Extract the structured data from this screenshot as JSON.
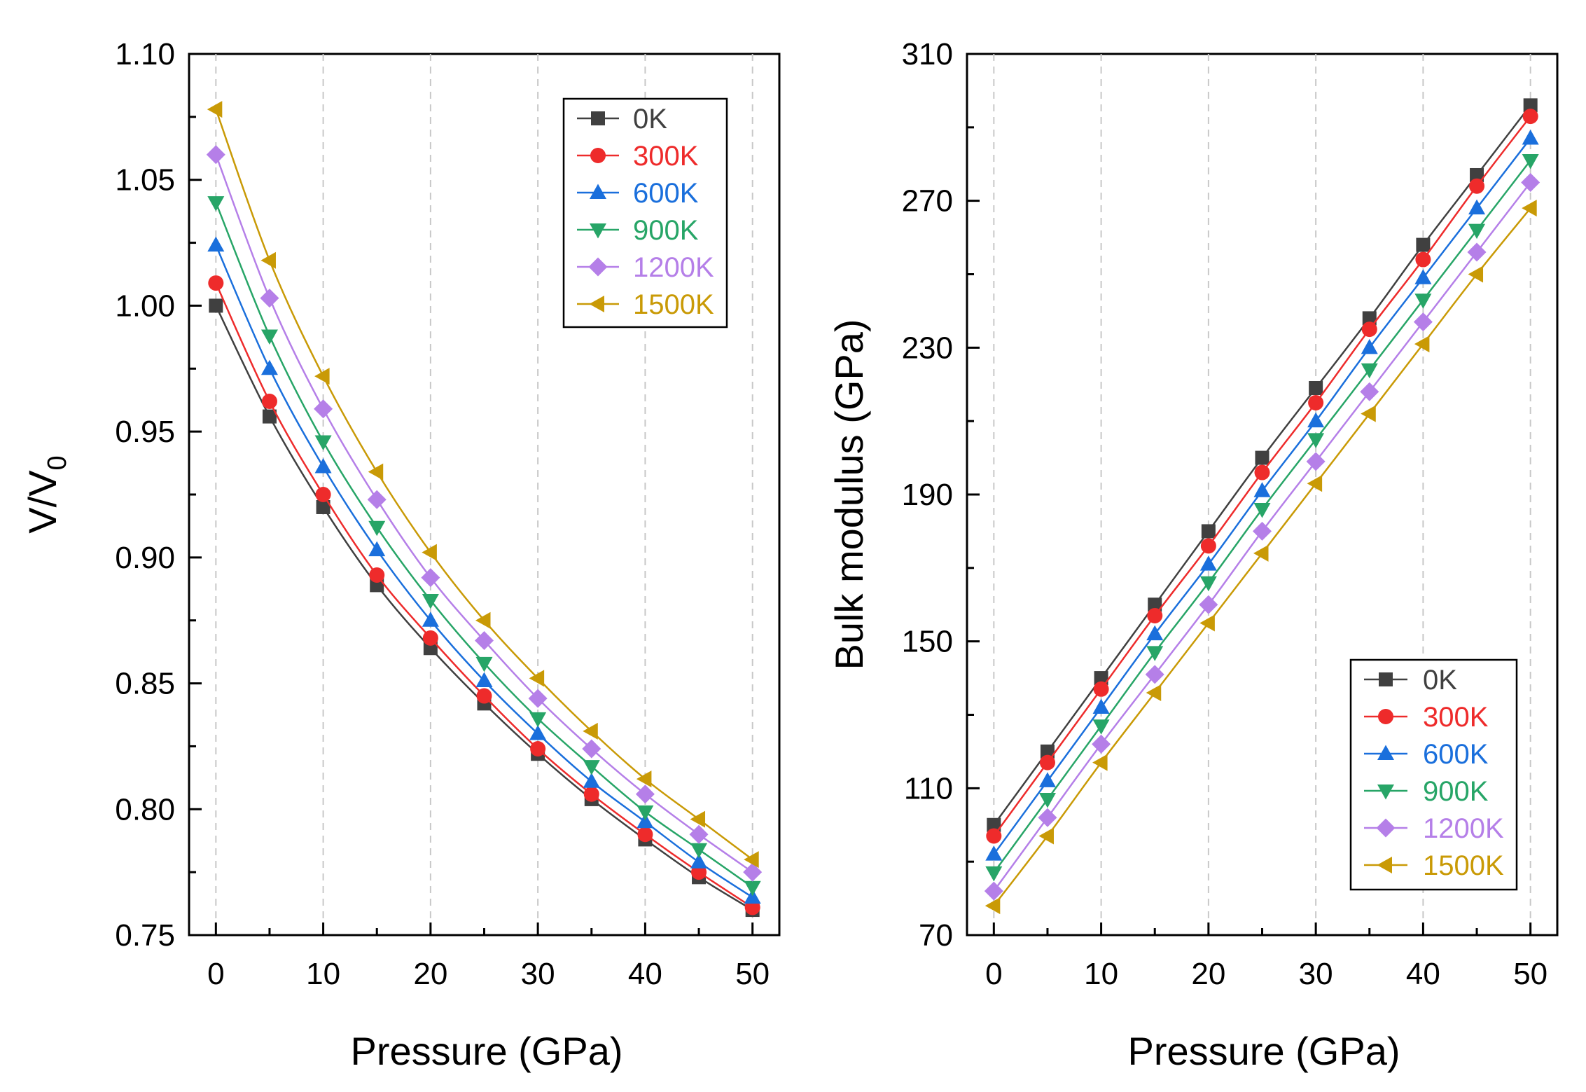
{
  "chart_data": [
    {
      "type": "line",
      "xlabel": "Pressure (GPa)",
      "ylabel_main": "V/V",
      "ylabel_sub": "0",
      "x": [
        0,
        5,
        10,
        15,
        20,
        25,
        30,
        35,
        40,
        45,
        50
      ],
      "xlim": [
        -2.5,
        52.5
      ],
      "ylim": [
        0.75,
        1.1
      ],
      "xticks": [
        0,
        10,
        20,
        30,
        40,
        50
      ],
      "xtick_labels": [
        "0",
        "10",
        "20",
        "30",
        "40",
        "50"
      ],
      "yticks": [
        0.75,
        0.8,
        0.85,
        0.9,
        0.95,
        1.0,
        1.05,
        1.1
      ],
      "ytick_labels": [
        "0.75",
        "0.80",
        "0.85",
        "0.90",
        "0.95",
        "1.00",
        "1.05",
        "1.10"
      ],
      "grid": "vertical dashed",
      "legend_position": "top-right",
      "series": [
        {
          "name": "0K",
          "color": "#404040",
          "marker": "square",
          "values": [
            1.0,
            0.956,
            0.92,
            0.889,
            0.864,
            0.842,
            0.822,
            0.804,
            0.788,
            0.773,
            0.76
          ]
        },
        {
          "name": "300K",
          "color": "#ee2b2b",
          "marker": "circle",
          "values": [
            1.009,
            0.962,
            0.925,
            0.893,
            0.868,
            0.845,
            0.824,
            0.806,
            0.79,
            0.775,
            0.761
          ]
        },
        {
          "name": "600K",
          "color": "#1a6fdc",
          "marker": "triangle-up",
          "values": [
            1.024,
            0.975,
            0.936,
            0.903,
            0.875,
            0.851,
            0.83,
            0.811,
            0.795,
            0.779,
            0.765
          ]
        },
        {
          "name": "900K",
          "color": "#27a567",
          "marker": "triangle-down",
          "values": [
            1.041,
            0.988,
            0.946,
            0.912,
            0.883,
            0.858,
            0.836,
            0.817,
            0.799,
            0.784,
            0.769
          ]
        },
        {
          "name": "1200K",
          "color": "#b57fe8",
          "marker": "diamond",
          "values": [
            1.06,
            1.003,
            0.959,
            0.923,
            0.892,
            0.867,
            0.844,
            0.824,
            0.806,
            0.79,
            0.775
          ]
        },
        {
          "name": "1500K",
          "color": "#c99a06",
          "marker": "triangle-left",
          "values": [
            1.078,
            1.018,
            0.972,
            0.934,
            0.902,
            0.875,
            0.852,
            0.831,
            0.812,
            0.796,
            0.78
          ]
        }
      ]
    },
    {
      "type": "line",
      "xlabel": "Pressure (GPa)",
      "ylabel": "Bulk modulus (GPa)",
      "x": [
        0,
        5,
        10,
        15,
        20,
        25,
        30,
        35,
        40,
        45,
        50
      ],
      "xlim": [
        -2.5,
        52.5
      ],
      "ylim": [
        70,
        310
      ],
      "xticks": [
        0,
        10,
        20,
        30,
        40,
        50
      ],
      "xtick_labels": [
        "0",
        "10",
        "20",
        "30",
        "40",
        "50"
      ],
      "yticks": [
        70,
        110,
        150,
        190,
        230,
        270,
        310
      ],
      "ytick_labels": [
        "70",
        "110",
        "150",
        "190",
        "230",
        "270",
        "310"
      ],
      "grid": "vertical dashed",
      "legend_position": "bottom-right",
      "series": [
        {
          "name": "0K",
          "color": "#404040",
          "marker": "square",
          "values": [
            100,
            120,
            140,
            160,
            180,
            200,
            219,
            238,
            258,
            277,
            296
          ]
        },
        {
          "name": "300K",
          "color": "#ee2b2b",
          "marker": "circle",
          "values": [
            97,
            117,
            137,
            157,
            176,
            196,
            215,
            235,
            254,
            274,
            293
          ]
        },
        {
          "name": "600K",
          "color": "#1a6fdc",
          "marker": "triangle-up",
          "values": [
            92,
            112,
            132,
            152,
            171,
            191,
            210,
            230,
            249,
            268,
            287
          ]
        },
        {
          "name": "900K",
          "color": "#27a567",
          "marker": "triangle-down",
          "values": [
            87,
            107,
            127,
            147,
            166,
            186,
            205,
            224,
            243,
            262,
            281
          ]
        },
        {
          "name": "1200K",
          "color": "#b57fe8",
          "marker": "diamond",
          "values": [
            82,
            102,
            122,
            141,
            160,
            180,
            199,
            218,
            237,
            256,
            275
          ]
        },
        {
          "name": "1500K",
          "color": "#c99a06",
          "marker": "triangle-left",
          "values": [
            78,
            97,
            117,
            136,
            155,
            174,
            193,
            212,
            231,
            250,
            268
          ]
        }
      ]
    }
  ]
}
